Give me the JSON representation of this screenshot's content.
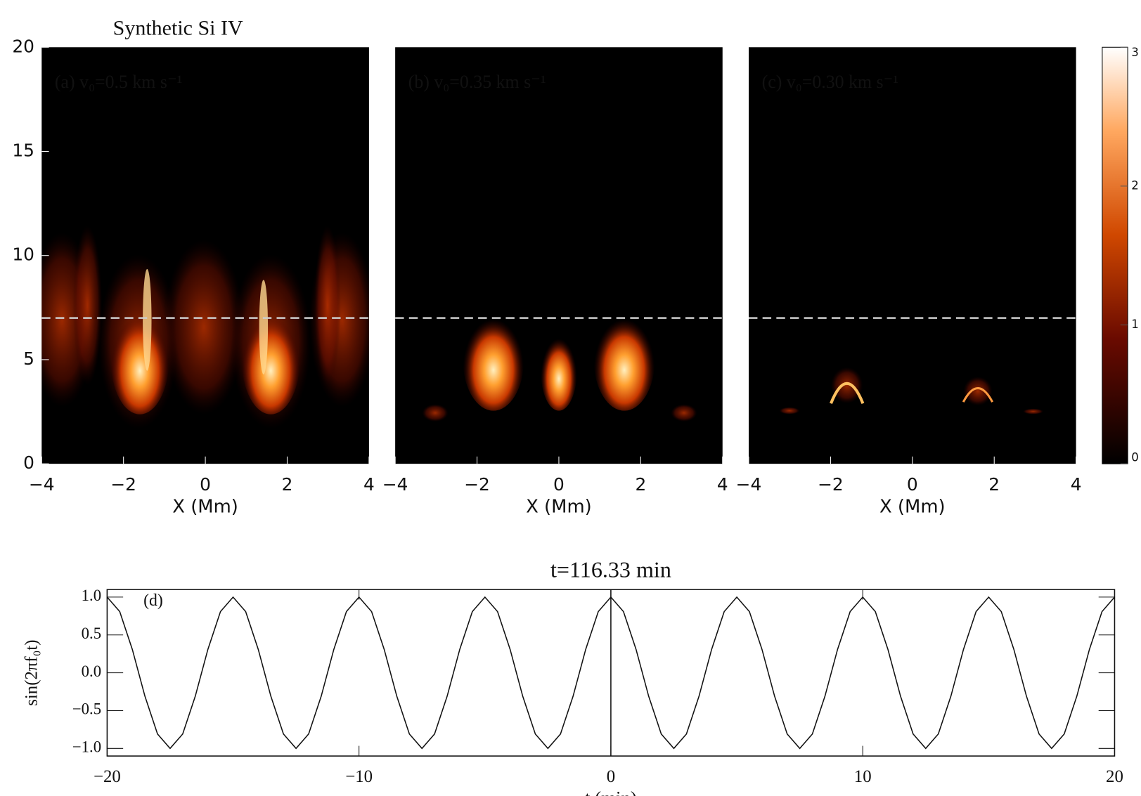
{
  "chart_data": [
    {
      "type": "heatmap",
      "title": "Synthetic Si IV",
      "annotation": "(a) v₀=0.5 km s⁻¹",
      "xlim": [
        -4,
        4
      ],
      "ylim": [
        0,
        20
      ],
      "xticks": [
        {
          "value": -4,
          "label": "−4"
        },
        {
          "value": -2,
          "label": "−2"
        },
        0,
        2,
        4
      ],
      "yticks": [
        0,
        5,
        10,
        15,
        20
      ],
      "x_label": "X (Mm)",
      "hline": 7
    },
    {
      "type": "heatmap",
      "annotation": "(b) v₀=0.35 km s⁻¹",
      "xlim": [
        -4,
        4
      ],
      "ylim": [
        0,
        20
      ],
      "xticks": [
        {
          "value": -4,
          "label": "−4"
        },
        {
          "value": -2,
          "label": "−2"
        },
        0,
        2,
        4
      ],
      "x_label": "X (Mm)",
      "hline": 7
    },
    {
      "type": "heatmap",
      "annotation": "(c) v₀=0.30 km s⁻¹",
      "xlim": [
        -4,
        4
      ],
      "ylim": [
        0,
        20
      ],
      "xticks": [
        {
          "value": -4,
          "label": "−4"
        },
        {
          "value": -2,
          "label": "−2"
        },
        0,
        2,
        4
      ],
      "x_label": "X (Mm)",
      "hline": 7,
      "colorbar": {
        "lim": [
          0,
          3
        ],
        "ticks": [
          0,
          1,
          2,
          3
        ]
      }
    },
    {
      "type": "line",
      "title": "t=116.33 min",
      "annotation": "(d)",
      "y_label": "sin(2πf₀t)",
      "x_label": "t (min)",
      "color": "#111111",
      "vline": 0,
      "xlim": [
        -20,
        20
      ],
      "ylim": [
        -1.1,
        1.1
      ],
      "xticks": [
        {
          "value": -20,
          "label": "−20"
        },
        {
          "value": -10,
          "label": "−10"
        },
        0,
        10,
        20
      ],
      "yticks": [
        {
          "value": -1,
          "label": "−1.0"
        },
        {
          "value": -0.5,
          "label": "−0.5"
        },
        {
          "value": 0,
          "label": "0.0"
        },
        0.5,
        {
          "value": 1,
          "label": "1.0"
        }
      ],
      "x": [
        -20,
        -19.5,
        -19,
        -18.5,
        -18,
        -17.5,
        -17,
        -16.5,
        -16,
        -15.5,
        -15,
        -14.5,
        -14,
        -13.5,
        -13,
        -12.5,
        -12,
        -11.5,
        -11,
        -10.5,
        -10,
        -9.5,
        -9,
        -8.5,
        -8,
        -7.5,
        -7,
        -6.5,
        -6,
        -5.5,
        -5,
        -4.5,
        -4,
        -3.5,
        -3,
        -2.5,
        -2,
        -1.5,
        -1,
        -0.5,
        0,
        0.5,
        1,
        1.5,
        2,
        2.5,
        3,
        3.5,
        4,
        4.5,
        5,
        5.5,
        6,
        6.5,
        7,
        7.5,
        8,
        8.5,
        9,
        9.5,
        10,
        10.5,
        11,
        11.5,
        12,
        12.5,
        13,
        13.5,
        14,
        14.5,
        15,
        15.5,
        16,
        16.5,
        17,
        17.5,
        18,
        18.5,
        19,
        19.5,
        20
      ],
      "values": [
        1,
        0.809,
        0.309,
        -0.309,
        -0.809,
        -1,
        -0.809,
        -0.309,
        0.309,
        0.809,
        1,
        0.809,
        0.309,
        -0.309,
        -0.809,
        -1,
        -0.809,
        -0.309,
        0.309,
        0.809,
        1,
        0.809,
        0.309,
        -0.309,
        -0.809,
        -1,
        -0.809,
        -0.309,
        0.309,
        0.809,
        1,
        0.809,
        0.309,
        -0.309,
        -0.809,
        -1,
        -0.809,
        -0.309,
        0.309,
        0.809,
        1,
        0.809,
        0.309,
        -0.309,
        -0.809,
        -1,
        -0.809,
        -0.309,
        0.309,
        0.809,
        1,
        0.809,
        0.309,
        -0.309,
        -0.809,
        -1,
        -0.809,
        -0.309,
        0.309,
        0.809,
        1,
        0.809,
        0.309,
        -0.309,
        -0.809,
        -1,
        -0.809,
        -0.309,
        0.309,
        0.809,
        1,
        0.809,
        0.309,
        -0.309,
        -0.809,
        -1,
        -0.809,
        -0.309,
        0.309,
        0.809,
        1
      ]
    }
  ]
}
